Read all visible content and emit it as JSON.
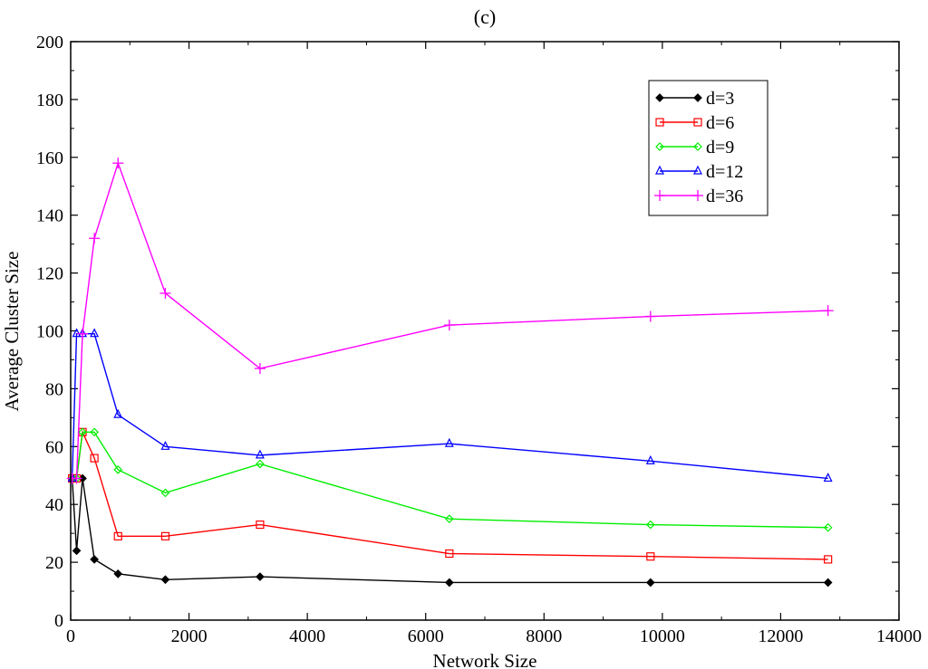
{
  "chart_data": {
    "type": "line",
    "title": "(c)",
    "xlabel": "Network Size",
    "ylabel": "Average Cluster Size",
    "xlim": [
      0,
      14000
    ],
    "ylim": [
      0,
      200
    ],
    "x_ticks": [
      0,
      2000,
      4000,
      6000,
      8000,
      10000,
      12000,
      14000
    ],
    "y_ticks": [
      0,
      20,
      40,
      60,
      80,
      100,
      120,
      140,
      160,
      180,
      200
    ],
    "grid": false,
    "legend_position": "top-right",
    "x": [
      25,
      100,
      200,
      400,
      800,
      1600,
      3200,
      6400,
      9800,
      12800
    ],
    "series": [
      {
        "name": "d=3",
        "color": "#000000",
        "marker": "diamond",
        "values": [
          49,
          24,
          49,
          21,
          16,
          14,
          15,
          13,
          13,
          13
        ]
      },
      {
        "name": "d=6",
        "color": "#ff0000",
        "marker": "square",
        "values": [
          49,
          49,
          65,
          56,
          29,
          29,
          33,
          23,
          22,
          21
        ]
      },
      {
        "name": "d=9",
        "color": "#00ee00",
        "marker": "diamond",
        "values": [
          49,
          49,
          65,
          65,
          52,
          44,
          54,
          35,
          33,
          32
        ]
      },
      {
        "name": "d=12",
        "color": "#0000ff",
        "marker": "triangle",
        "values": [
          49,
          99,
          99,
          99,
          71,
          60,
          57,
          61,
          55,
          49
        ]
      },
      {
        "name": "d=36",
        "color": "#ff00ff",
        "marker": "plus",
        "values": [
          49,
          49,
          99,
          132,
          158,
          113,
          87,
          102,
          105,
          107
        ]
      }
    ]
  }
}
